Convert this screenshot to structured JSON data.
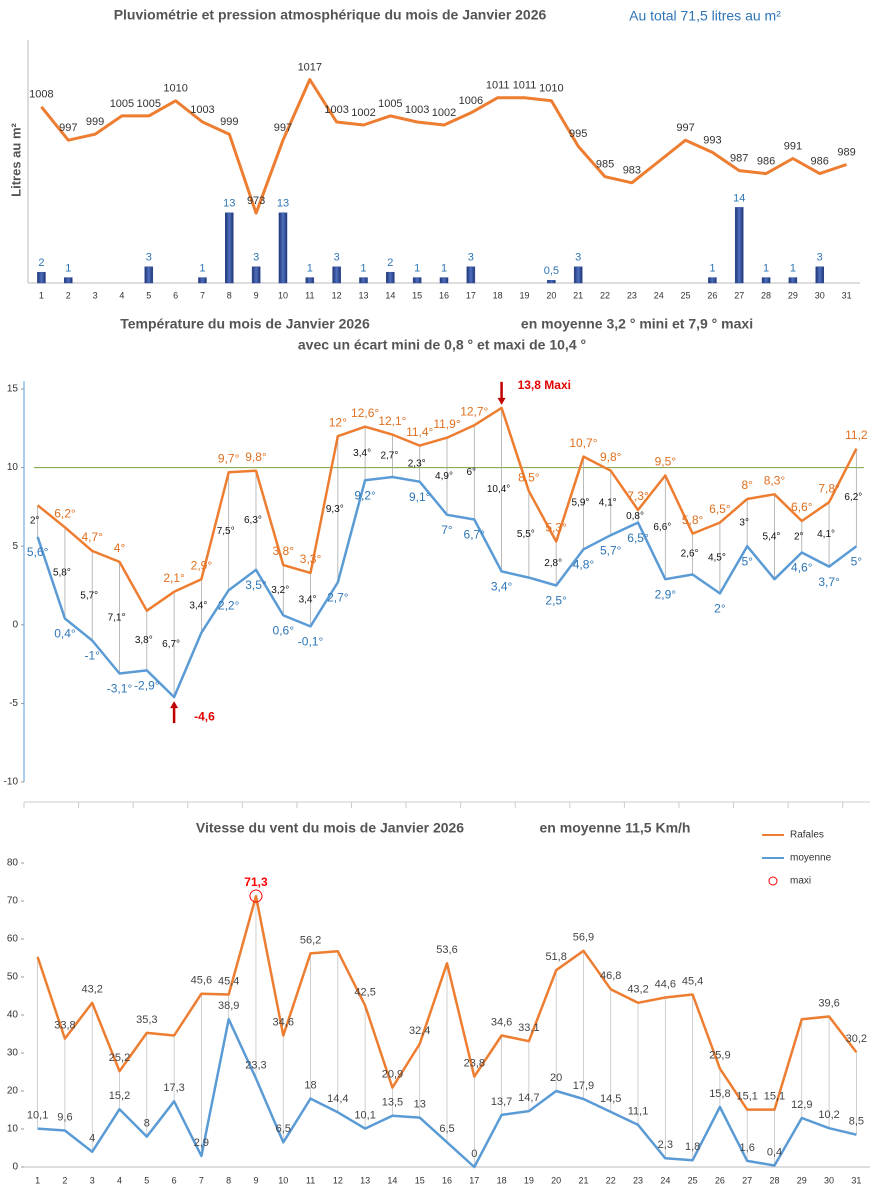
{
  "chart_data": [
    {
      "type": "combo",
      "title": "Pluviométrie et pression atmosphérique du mois de Janvier 2026",
      "subtitle": "Au total  71,5  litres au m²",
      "y_label": "Litres  au  m²",
      "categories": [
        "1",
        "2",
        "3",
        "4",
        "5",
        "6",
        "7",
        "8",
        "9",
        "10",
        "11",
        "12",
        "13",
        "14",
        "15",
        "16",
        "17",
        "18",
        "19",
        "20",
        "21",
        "22",
        "23",
        "24",
        "25",
        "26",
        "27",
        "28",
        "29",
        "30",
        "31"
      ],
      "ylim": [
        0,
        45
      ],
      "y2lim": [
        950,
        1030
      ],
      "series": [
        {
          "type": "bar",
          "color": "#2F4B9A",
          "label_color": "#2E75B6",
          "values": [
            2,
            1,
            null,
            null,
            3,
            null,
            1,
            13,
            3,
            13,
            1,
            3,
            1,
            2,
            1,
            1,
            3,
            null,
            null,
            0.5,
            3,
            null,
            null,
            null,
            null,
            1,
            14,
            1,
            1,
            3,
            null
          ],
          "value_labels": [
            "2",
            "1",
            null,
            null,
            "3",
            null,
            "1",
            "13",
            "3",
            "13",
            "1",
            "3",
            "1",
            "2",
            "1",
            "1",
            "3",
            null,
            null,
            "0,5",
            "3",
            null,
            null,
            null,
            null,
            "1",
            "14",
            "1",
            "1",
            "3",
            null
          ]
        },
        {
          "type": "line",
          "axis": "y2",
          "color": "#ED7D31",
          "label_color": "#333333",
          "values": [
            1008,
            997,
            999,
            1005,
            1005,
            1010,
            1003,
            999,
            973,
            997,
            1017,
            1003,
            1002,
            1005,
            1003,
            1002,
            1006,
            1011,
            1011,
            1010,
            995,
            985,
            983,
            990,
            997,
            993,
            987,
            986,
            991,
            986,
            989
          ],
          "value_labels": [
            "1008",
            "997",
            "999",
            "1005",
            "1005",
            "1010",
            "1003",
            "999",
            "973",
            "997",
            "1017",
            "1003",
            "1002",
            "1005",
            "1003",
            "1002",
            "1006",
            "1011",
            "1011",
            "1010",
            "995",
            "985",
            "983",
            null,
            "997",
            "993",
            "987",
            "986",
            "991",
            "986",
            "989"
          ]
        }
      ]
    },
    {
      "type": "line",
      "title": "Température du mois de Janvier 2026",
      "subtitle": "en moyenne 3,2 °  mini  et  7,9 °  maxi",
      "note": "avec un écart mini de 0,8 ° et maxi de  10,4 °",
      "max_annotation": "13,8  Maxi",
      "min_annotation": "-4,6",
      "ylim": [
        -10,
        15
      ],
      "yticks": [
        -10,
        -5,
        0,
        5,
        10,
        15
      ],
      "reference_line": {
        "value": 10,
        "color": "#7F9F3F"
      },
      "series": [
        {
          "color": "#ED7D31",
          "label_color": "#E07020",
          "label_position": "above",
          "values": [
            7.6,
            6.2,
            4.7,
            4,
            0.9,
            2.1,
            2.9,
            9.7,
            9.8,
            3.8,
            3.3,
            12,
            12.6,
            12.1,
            11.4,
            11.9,
            12.7,
            13.8,
            8.5,
            5.3,
            10.7,
            9.8,
            7.3,
            9.5,
            5.8,
            6.5,
            8,
            8.3,
            6.6,
            7.8,
            11.2
          ],
          "value_labels": [
            null,
            "6,2°",
            "4,7°",
            "4°",
            null,
            "2,1°",
            "2,9°",
            "9,7°",
            "9,8°",
            "3,8°",
            "3,3°",
            "12°",
            "12,6°",
            "12,1°",
            "11,4°",
            "11,9°",
            "12,7°",
            null,
            "8,5°",
            "5,3°",
            "10,7°",
            "9,8°",
            "7,3°",
            "9,5°",
            "5,8°",
            "6,5°",
            "8°",
            "8,3°",
            "6,6°",
            "7,8°",
            "11,2"
          ]
        },
        {
          "color": "#5B9BD5",
          "label_color": "#2E75B6",
          "label_position": "below",
          "values": [
            5.6,
            0.4,
            -1,
            -3.1,
            -2.9,
            -4.6,
            -0.5,
            2.2,
            3.5,
            0.6,
            -0.1,
            2.7,
            9.2,
            9.4,
            9.1,
            7,
            6.7,
            3.4,
            3,
            2.5,
            4.8,
            5.7,
            6.5,
            2.9,
            3.2,
            2,
            5,
            2.9,
            4.6,
            3.7,
            5
          ],
          "value_labels": [
            "5,6°",
            "0,4°",
            "-1°",
            "-3,1°",
            "-2,9°",
            null,
            null,
            "2,2°",
            "3,5°",
            "0,6°",
            "-0,1°",
            "2,7°",
            "9,2°",
            null,
            "9,1°",
            "7°",
            "6,7°",
            "3,4°",
            null,
            "2,5°",
            "4,8°",
            "5,7°",
            "6,5°",
            "2,9°",
            null,
            "2°",
            "5°",
            null,
            "4,6°",
            "3,7°",
            "5°"
          ]
        }
      ],
      "spread": {
        "color": "#AAAAAA",
        "label_color": "#111111",
        "values": [
          2,
          5.8,
          5.7,
          7.1,
          3.8,
          6.7,
          3.4,
          7.5,
          6.3,
          3.2,
          3.4,
          9.3,
          3.4,
          2.7,
          2.3,
          4.9,
          6,
          10.4,
          5.5,
          2.8,
          5.9,
          4.1,
          0.8,
          6.6,
          2.6,
          4.5,
          3,
          5.4,
          2,
          4.1,
          6.2
        ],
        "value_labels": [
          "2°",
          "5,8°",
          "5,7°",
          "7,1°",
          "3,8°",
          "6,7°",
          "3,4°",
          "7,5°",
          "6,3°",
          "3,2°",
          "3,4°",
          "9,3°",
          "3,4°",
          "2,7°",
          "2,3°",
          "4,9°",
          "6°",
          "10,4°",
          "5,5°",
          "2,8°",
          "5,9°",
          "4,1°",
          "0,8°",
          "6,6°",
          "2,6°",
          "4,5°",
          "3°",
          "5,4°",
          "2°",
          "4,1°",
          "6,2°"
        ]
      }
    },
    {
      "type": "line",
      "title": "Vitesse du vent du mois de Janvier  2026",
      "subtitle": "en moyenne    11,5   Km/h",
      "categories": [
        "1",
        "2",
        "3",
        "4",
        "5",
        "6",
        "7",
        "8",
        "9",
        "10",
        "11",
        "12",
        "13",
        "14",
        "15",
        "16",
        "17",
        "18",
        "19",
        "20",
        "21",
        "22",
        "23",
        "24",
        "25",
        "26",
        "27",
        "28",
        "29",
        "30",
        "31"
      ],
      "ylim": [
        0,
        80
      ],
      "yticks": [
        0,
        10,
        20,
        30,
        40,
        50,
        60,
        70,
        80
      ],
      "drop_lines": true,
      "maxi_marker": {
        "name": "maxi",
        "color": "#FF0000"
      },
      "series": [
        {
          "name": "Rafales",
          "color": "#ED7D31",
          "label_color": "#444444",
          "label_position": "above",
          "values": [
            55.3,
            33.8,
            43.2,
            25.2,
            35.3,
            34.6,
            45.6,
            45.4,
            71.3,
            34.6,
            56.2,
            56.8,
            42.5,
            20.9,
            32.4,
            53.6,
            23.8,
            34.6,
            33.1,
            51.8,
            56.9,
            46.8,
            43.2,
            44.6,
            45.4,
            25.9,
            15.1,
            15.1,
            38.9,
            39.6,
            30.2
          ],
          "value_labels": [
            null,
            "33,8",
            "43,2",
            "25,2",
            "35,3",
            null,
            "45,6",
            "45,4",
            "71,3",
            "34,6",
            "56,2",
            null,
            "42,5",
            "20,9",
            "32,4",
            "53,6",
            "23,8",
            "34,6",
            "33,1",
            "51,8",
            "56,9",
            "46,8",
            "43,2",
            "44,6",
            "45,4",
            "25,9",
            "15,1",
            "15,1",
            null,
            "39,6",
            "30,2"
          ]
        },
        {
          "name": "moyenne",
          "color": "#5B9BD5",
          "label_color": "#444444",
          "label_position": "above",
          "values": [
            10.1,
            9.6,
            4,
            15.2,
            8,
            17.3,
            2.9,
            38.9,
            23.3,
            6.5,
            18,
            14.4,
            10.1,
            13.5,
            13,
            6.5,
            0,
            13.7,
            14.7,
            20,
            17.9,
            14.5,
            11.1,
            2.3,
            1.8,
            15.8,
            1.6,
            0.4,
            12.9,
            10.2,
            8.5
          ],
          "value_labels": [
            "10,1",
            "9,6",
            "4",
            "15,2",
            "8",
            "17,3",
            "2,9",
            "38,9",
            "23,3",
            "6,5",
            "18",
            "14,4",
            "10,1",
            "13,5",
            "13",
            "6,5",
            "0",
            "13,7",
            "14,7",
            "20",
            "17,9",
            "14,5",
            "11,1",
            "2,3",
            "1,8",
            "15,8",
            "1,6",
            "0,4",
            "12,9",
            "10,2",
            "8,5"
          ]
        }
      ]
    }
  ]
}
